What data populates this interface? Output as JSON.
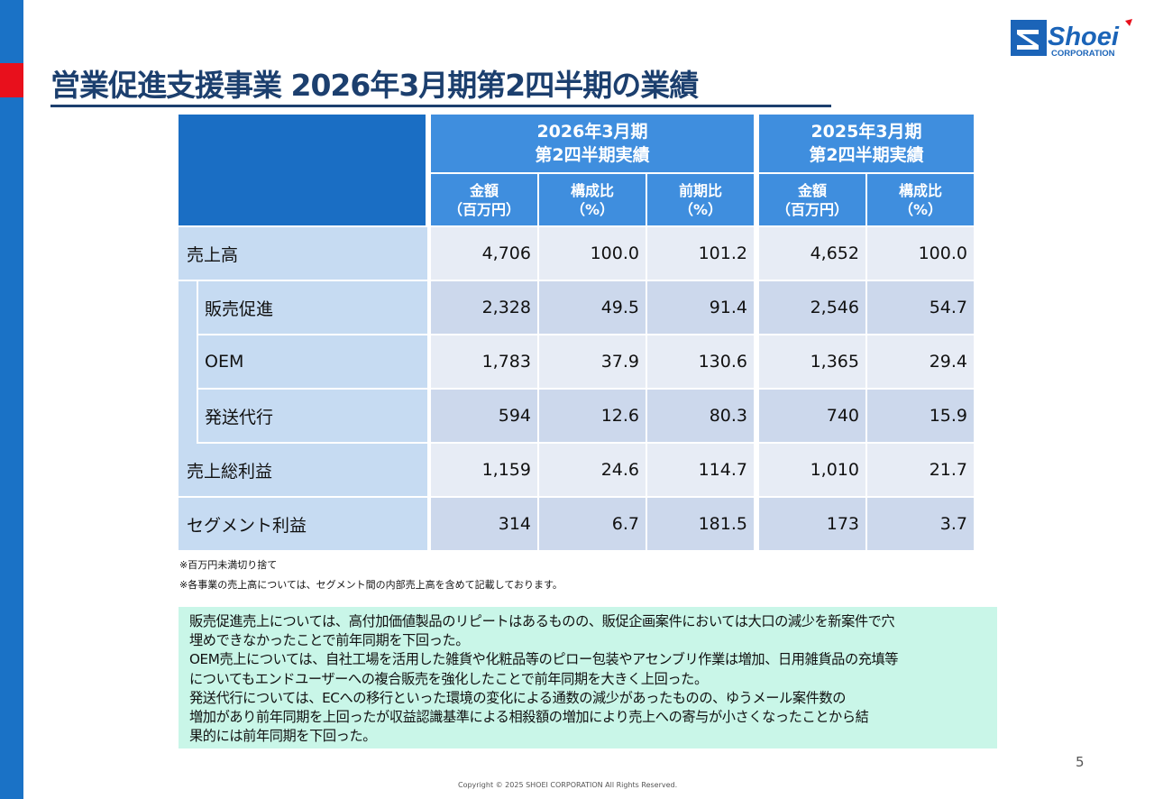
{
  "title": "営業促進支援事業 2026年3月期第2四半期の業績",
  "logo": {
    "name": "Shoei",
    "sub": "CORPORATION"
  },
  "table": {
    "periods": [
      {
        "line1": "2026年3月期",
        "line2": "第2四半期実績"
      },
      {
        "line1": "2025年3月期",
        "line2": "第2四半期実績"
      }
    ],
    "columns": [
      {
        "line1": "金額",
        "line2": "（百万円）"
      },
      {
        "line1": "構成比",
        "line2": "（%）"
      },
      {
        "line1": "前期比",
        "line2": "（%）"
      },
      {
        "line1": "金額",
        "line2": "（百万円）"
      },
      {
        "line1": "構成比",
        "line2": "（%）"
      }
    ],
    "rows": [
      {
        "label": "売上高",
        "values": [
          "4,706",
          "100.0",
          "101.2",
          "4,652",
          "100.0"
        ]
      },
      {
        "label": "販売促進",
        "values": [
          "2,328",
          "49.5",
          "91.4",
          "2,546",
          "54.7"
        ]
      },
      {
        "label": "OEM",
        "values": [
          "1,783",
          "37.9",
          "130.6",
          "1,365",
          "29.4"
        ]
      },
      {
        "label": "発送代行",
        "values": [
          "594",
          "12.6",
          "80.3",
          "740",
          "15.9"
        ]
      },
      {
        "label": "売上総利益",
        "values": [
          "1,159",
          "24.6",
          "114.7",
          "1,010",
          "21.7"
        ]
      },
      {
        "label": "セグメント利益",
        "values": [
          "314",
          "6.7",
          "181.5",
          "173",
          "3.7"
        ]
      }
    ]
  },
  "notes": [
    "※百万円未満切り捨て",
    "※各事業の売上高については、セグメント間の内部売上高を含めて記載しております。"
  ],
  "summary": [
    "販売促進売上については、高付加価値製品のリピートはあるものの、販促企画案件においては大口の減少を新案件で穴",
    "埋めできなかったことで前年同期を下回った。",
    "OEM売上については、自社工場を活用した雑貨や化粧品等のピロー包装やアセンブリ作業は増加、日用雑貨品の充填等",
    "についてもエンドユーザーへの複合販売を強化したことで前年同期を大きく上回った。",
    "発送代行については、ECへの移行といった環境の変化による通数の減少があったものの、ゆうメール案件数の",
    "増加があり前年同期を上回ったが収益認識基準による相殺額の増加により売上への寄与が小さくなったことから結",
    "果的には前年同期を下回った。"
  ],
  "page_number": "5",
  "copyright": "Copyright © 2025 SHOEI CORPORATION All Rights Reserved."
}
